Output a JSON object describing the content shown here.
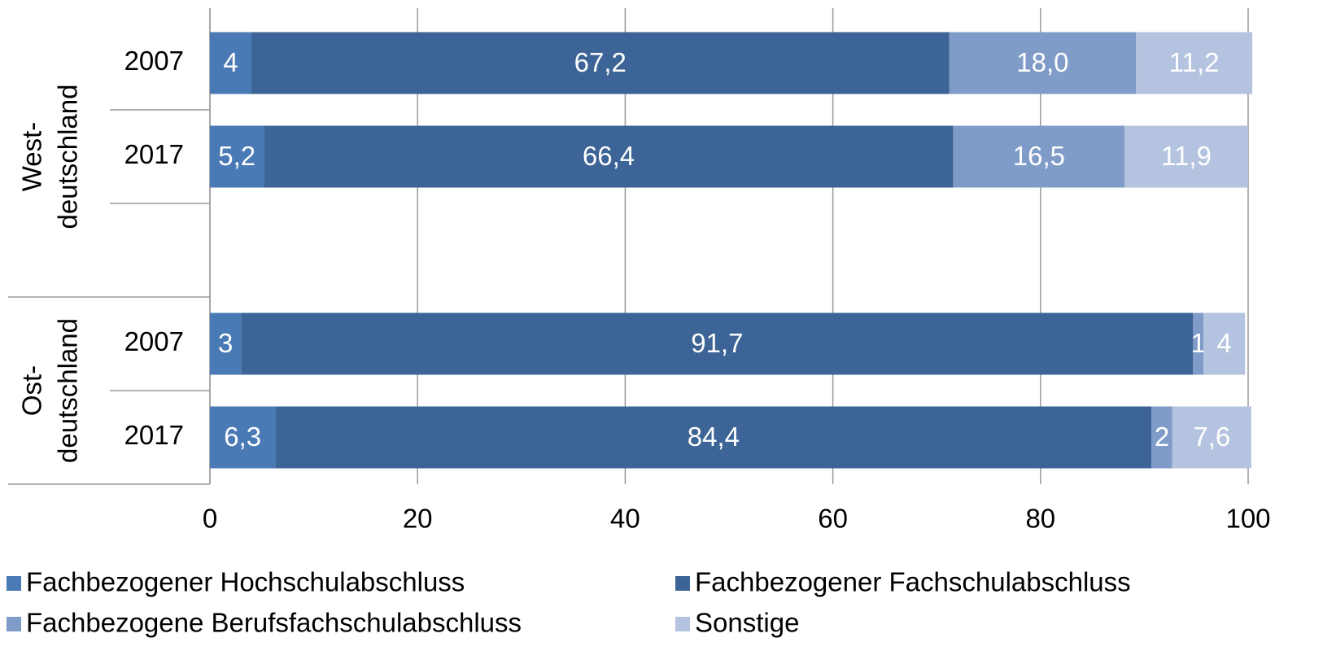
{
  "chart_data": {
    "type": "stacked_barh",
    "categories": [
      "2007",
      "2017",
      null,
      "2007",
      "2017"
    ],
    "groups": [
      [
        "West-",
        "deutschland"
      ],
      [
        "Ost-",
        "deutschland"
      ]
    ],
    "series": [
      {
        "name": "Fachbezogener Hochschulabschluss",
        "color": "#4a7ab5",
        "values": [
          4,
          5.2,
          null,
          3,
          6.3
        ],
        "value_labels": [
          "4",
          "5,2",
          null,
          "3",
          "6,3"
        ]
      },
      {
        "name": "Fachbezogener Fachschulabschluss",
        "color": "#3d6496",
        "values": [
          67.2,
          66.4,
          null,
          91.7,
          84.4
        ],
        "value_labels": [
          "67,2",
          "66,4",
          null,
          "91,7",
          "84,4"
        ]
      },
      {
        "name": "Fachbezogene Berufsfachschulabschluss",
        "color": "#7f9cc8",
        "values": [
          18.0,
          16.5,
          null,
          1,
          2
        ],
        "value_labels": [
          "18,0",
          "16,5",
          null,
          "1",
          "2"
        ]
      },
      {
        "name": "Sonstige",
        "color": "#b4c3df",
        "values": [
          11.2,
          11.9,
          null,
          4,
          7.6
        ],
        "value_labels": [
          "11,2",
          "11,9",
          null,
          "4",
          "7,6"
        ]
      }
    ],
    "xlim": [
      0,
      100
    ],
    "xticks": [
      0,
      20,
      40,
      60,
      80,
      100
    ],
    "grid": true
  }
}
